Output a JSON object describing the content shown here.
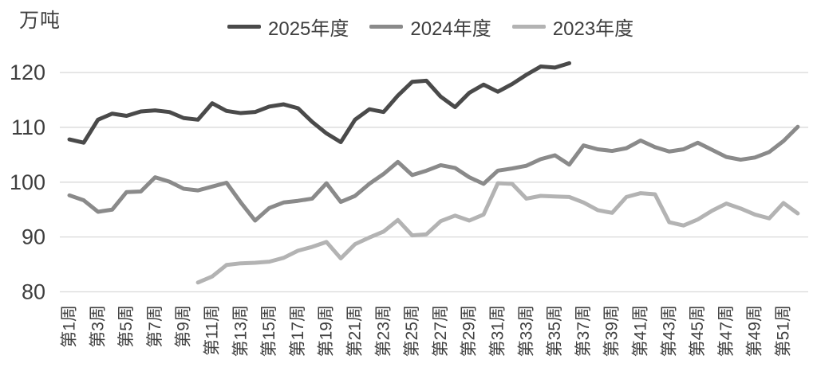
{
  "chart_data": {
    "type": "line",
    "title": "",
    "unit_label": "万吨",
    "xlabel": "",
    "ylabel": "万吨",
    "x_unit": "week",
    "weeks_total": 52,
    "x_tick_labels": [
      "第1周",
      "第3周",
      "第5周",
      "第7周",
      "第9周",
      "第11周",
      "第13周",
      "第15周",
      "第17周",
      "第19周",
      "第21周",
      "第23周",
      "第25周",
      "第27周",
      "第29周",
      "第31周",
      "第33周",
      "第35周",
      "第37周",
      "第39周",
      "第41周",
      "第43周",
      "第45周",
      "第47周",
      "第49周",
      "第51周"
    ],
    "x_tick_weeks": [
      1,
      3,
      5,
      7,
      9,
      11,
      13,
      15,
      17,
      19,
      21,
      23,
      25,
      27,
      29,
      31,
      33,
      35,
      37,
      39,
      41,
      43,
      45,
      47,
      49,
      51
    ],
    "y_ticks": [
      80,
      90,
      100,
      110,
      120
    ],
    "ylim": [
      78,
      124
    ],
    "grid": "horizontal",
    "legend_position": "top",
    "colors": {
      "series_2025": "#4a4a4a",
      "series_2024": "#8a8a8a",
      "series_2023": "#b3b3b3",
      "gridline": "#d9d9d9",
      "text": "#3f3f3f",
      "background": "#ffffff"
    },
    "series": [
      {
        "name": "2025年度",
        "start_week": 1,
        "values": [
          107.8,
          107.2,
          111.4,
          112.5,
          112.1,
          112.9,
          113.1,
          112.8,
          111.7,
          111.4,
          114.4,
          113.0,
          112.6,
          112.8,
          113.8,
          114.2,
          113.5,
          111.0,
          108.9,
          107.3,
          111.4,
          113.3,
          112.8,
          115.8,
          118.3,
          118.5,
          115.6,
          113.7,
          116.3,
          117.8,
          116.5,
          117.9,
          119.6,
          121.1,
          120.9,
          121.7
        ]
      },
      {
        "name": "2024年度",
        "start_week": 1,
        "values": [
          97.6,
          96.7,
          94.6,
          95.0,
          98.2,
          98.3,
          100.9,
          100.1,
          98.8,
          98.5,
          99.2,
          99.9,
          96.3,
          93.0,
          95.3,
          96.3,
          96.6,
          97.0,
          99.8,
          96.4,
          97.5,
          99.7,
          101.5,
          103.7,
          101.3,
          102.1,
          103.1,
          102.6,
          100.9,
          99.7,
          102.1,
          102.5,
          103.0,
          104.2,
          104.9,
          103.2,
          106.7,
          106.0,
          105.7,
          106.2,
          107.6,
          106.4,
          105.6,
          106.0,
          107.2,
          105.9,
          104.6,
          104.1,
          104.5,
          105.5,
          107.5,
          110.1
        ]
      },
      {
        "name": "2023年度",
        "start_week": 10,
        "values": [
          81.7,
          82.8,
          84.9,
          85.2,
          85.3,
          85.5,
          86.2,
          87.5,
          88.2,
          89.1,
          86.1,
          88.7,
          89.9,
          91.0,
          93.1,
          90.3,
          90.5,
          92.9,
          93.9,
          93.0,
          94.1,
          99.8,
          99.7,
          97.0,
          97.5,
          97.4,
          97.3,
          96.3,
          94.9,
          94.4,
          97.3,
          98.0,
          97.8,
          92.7,
          92.1,
          93.2,
          94.8,
          96.1,
          95.2,
          94.1,
          93.4,
          96.2,
          94.3
        ]
      }
    ]
  },
  "legend": {
    "items": [
      "2025年度",
      "2024年度",
      "2023年度"
    ]
  }
}
